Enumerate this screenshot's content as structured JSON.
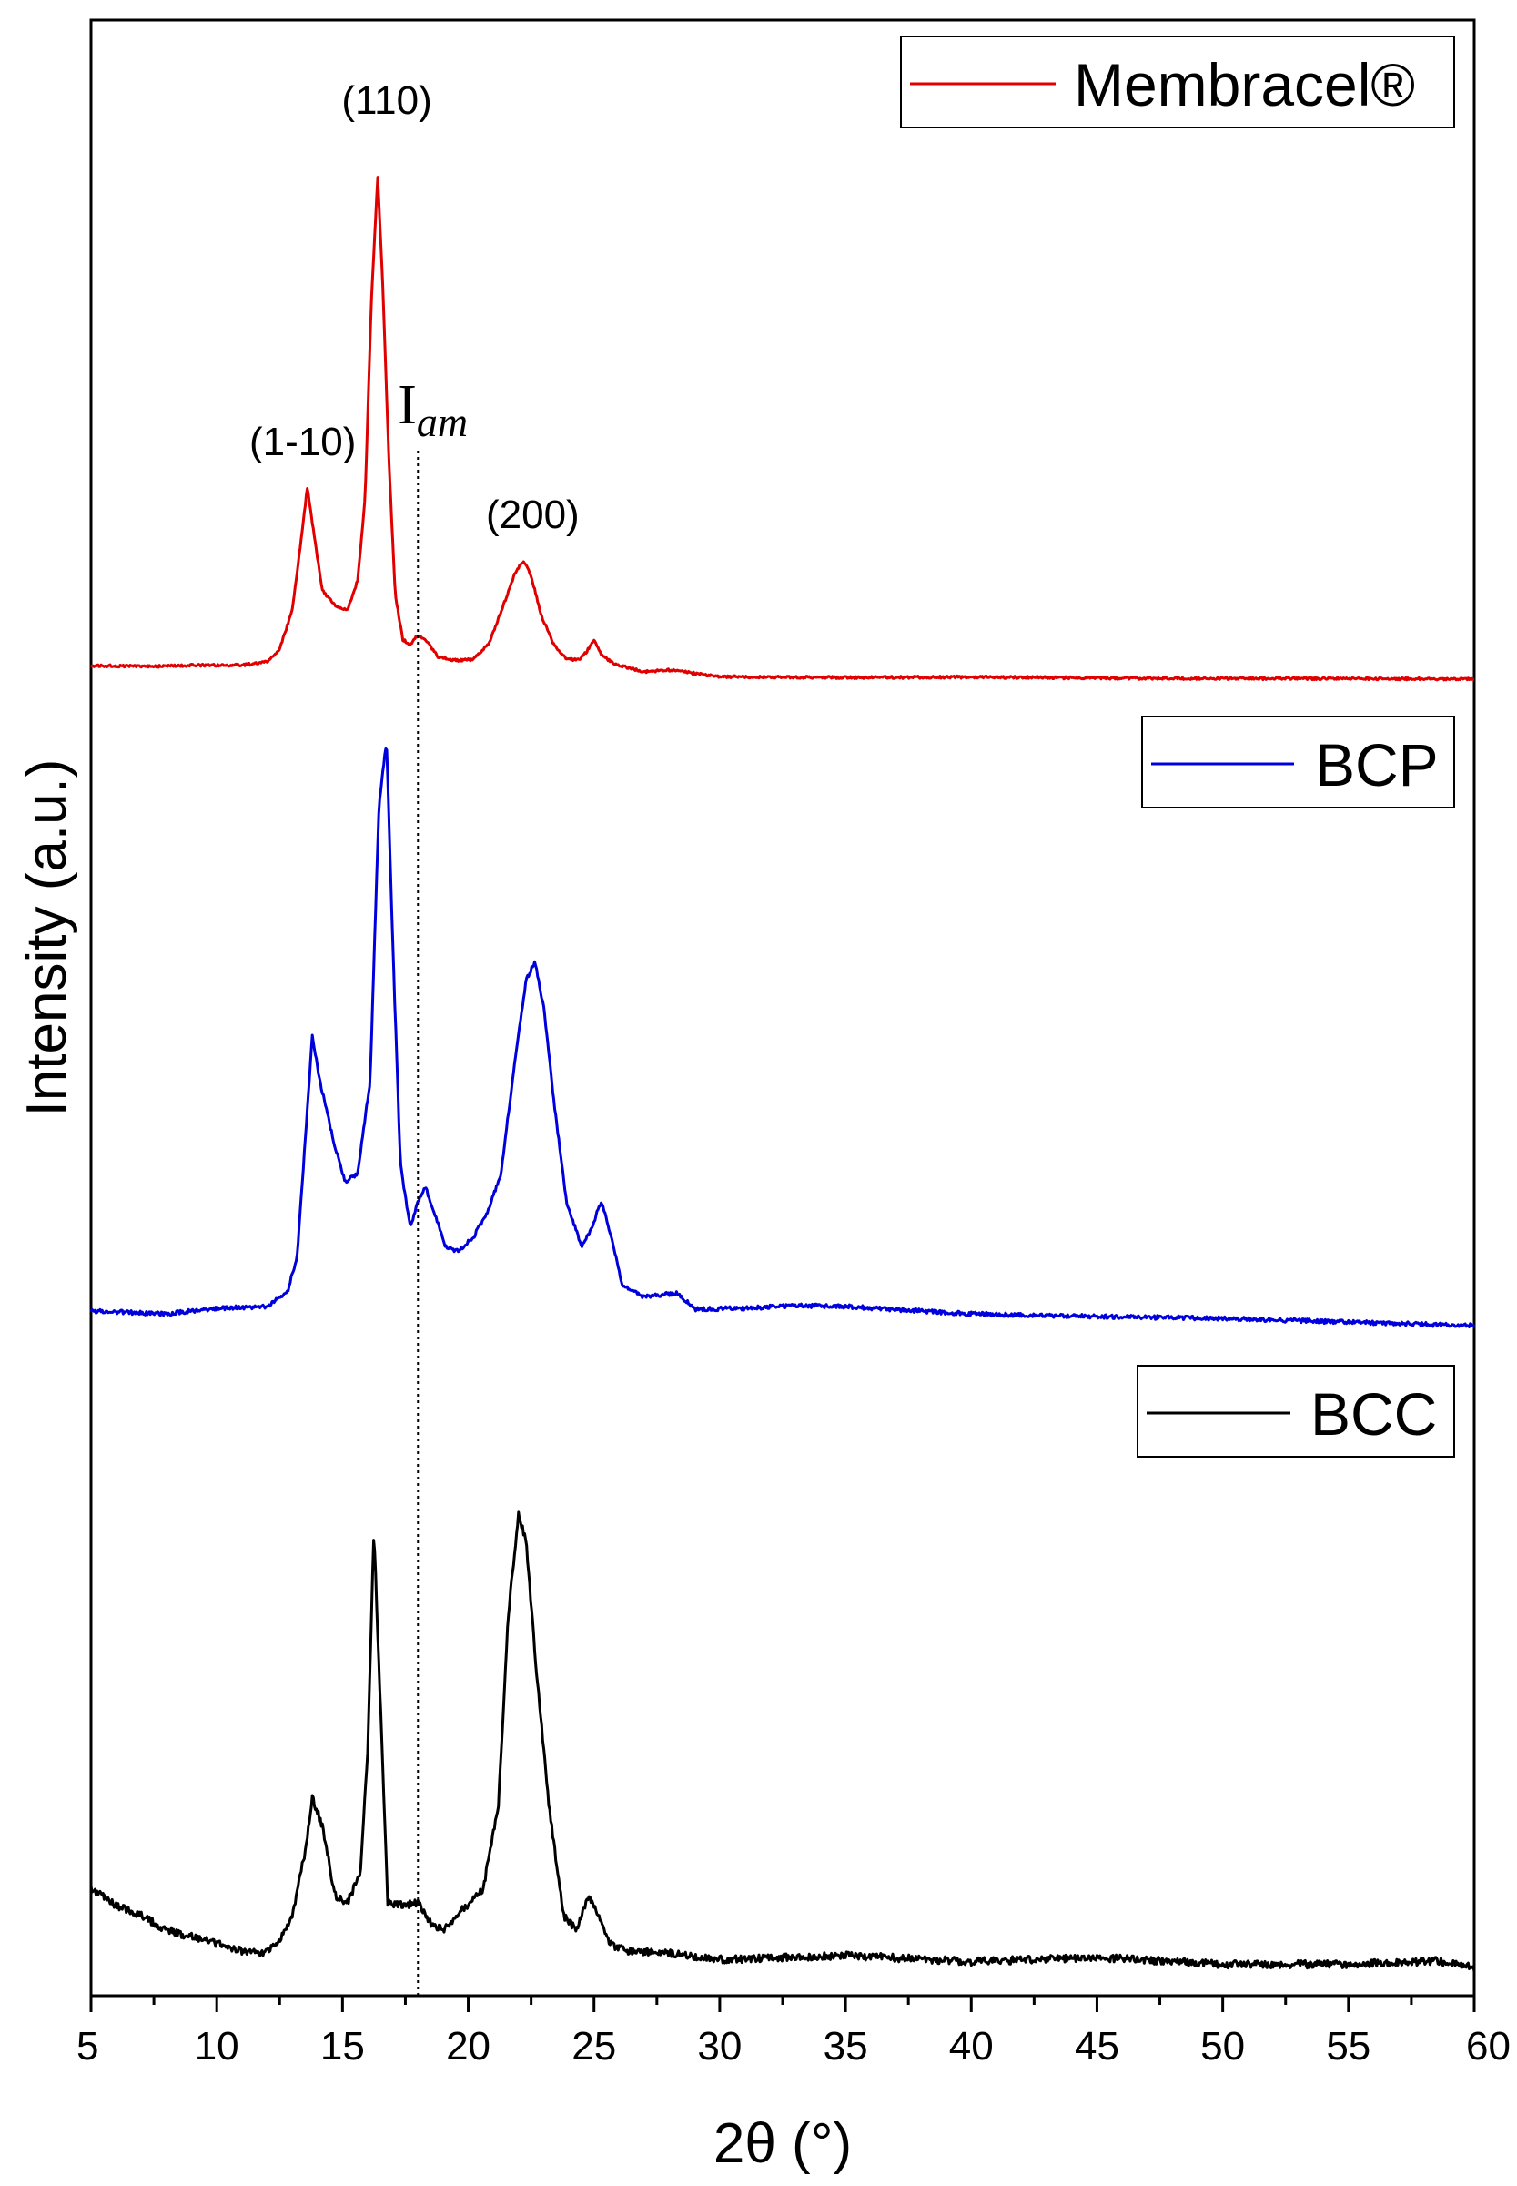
{
  "chart_data": {
    "type": "line",
    "xlabel": "2θ (°)",
    "ylabel": "Intensity (a.u.)",
    "xlim": [
      5,
      60
    ],
    "x_ticks": [
      "5",
      "10",
      "15",
      "20",
      "25",
      "30",
      "35",
      "40",
      "45",
      "50",
      "55",
      "60"
    ],
    "y_ticks": [],
    "legend_entries": [
      "Membracel®",
      "BCP",
      "BCC"
    ],
    "series": [
      {
        "name": "Membracel®",
        "color": "#e00000",
        "points": [
          [
            5,
            0.7
          ],
          [
            8,
            0.6
          ],
          [
            9,
            0.8
          ],
          [
            11,
            0.8
          ],
          [
            12,
            1.5
          ],
          [
            12.5,
            4
          ],
          [
            13,
            12
          ],
          [
            13.3,
            24
          ],
          [
            13.6,
            37
          ],
          [
            13.85,
            28
          ],
          [
            14.2,
            16
          ],
          [
            14.7,
            13
          ],
          [
            15.2,
            12
          ],
          [
            15.6,
            18
          ],
          [
            15.9,
            35
          ],
          [
            16.15,
            75
          ],
          [
            16.4,
            100
          ],
          [
            16.6,
            78
          ],
          [
            16.85,
            42
          ],
          [
            17.1,
            15
          ],
          [
            17.4,
            6
          ],
          [
            17.7,
            5
          ],
          [
            18.0,
            7
          ],
          [
            18.3,
            6
          ],
          [
            18.8,
            2.5
          ],
          [
            19.5,
            1.8
          ],
          [
            20.2,
            2
          ],
          [
            20.8,
            5
          ],
          [
            21.4,
            13
          ],
          [
            21.9,
            20
          ],
          [
            22.2,
            22
          ],
          [
            22.5,
            19
          ],
          [
            22.9,
            11
          ],
          [
            23.4,
            5
          ],
          [
            23.9,
            2
          ],
          [
            24.4,
            2
          ],
          [
            24.7,
            3.5
          ],
          [
            25.0,
            6
          ],
          [
            25.3,
            3
          ],
          [
            25.8,
            1
          ],
          [
            27,
            -0.5
          ],
          [
            28,
            -0.2
          ],
          [
            30,
            -1.5
          ],
          [
            35,
            -1.7
          ],
          [
            40,
            -1.6
          ],
          [
            45,
            -1.8
          ],
          [
            50,
            -1.9
          ],
          [
            55,
            -1.9
          ],
          [
            60,
            -2
          ]
        ]
      },
      {
        "name": "BCP",
        "color": "#0000dd",
        "points": [
          [
            5,
            0
          ],
          [
            8,
            -0.3
          ],
          [
            10,
            0.3
          ],
          [
            12,
            0.5
          ],
          [
            12.8,
            2
          ],
          [
            13.2,
            6
          ],
          [
            13.5,
            18
          ],
          [
            13.8,
            30
          ],
          [
            14.1,
            25
          ],
          [
            14.6,
            19
          ],
          [
            15.1,
            14
          ],
          [
            15.6,
            15
          ],
          [
            16.1,
            25
          ],
          [
            16.45,
            55
          ],
          [
            16.75,
            62
          ],
          [
            17.0,
            40
          ],
          [
            17.3,
            16
          ],
          [
            17.7,
            9
          ],
          [
            18.0,
            12
          ],
          [
            18.3,
            13.5
          ],
          [
            18.6,
            11
          ],
          [
            19.1,
            7
          ],
          [
            19.6,
            6.5
          ],
          [
            20.2,
            8
          ],
          [
            20.8,
            11
          ],
          [
            21.3,
            15
          ],
          [
            21.8,
            26
          ],
          [
            22.3,
            36
          ],
          [
            22.65,
            38
          ],
          [
            23.0,
            33
          ],
          [
            23.4,
            23
          ],
          [
            23.9,
            12
          ],
          [
            24.5,
            7
          ],
          [
            24.9,
            9
          ],
          [
            25.3,
            12
          ],
          [
            25.7,
            8
          ],
          [
            26.1,
            3
          ],
          [
            27,
            1.5
          ],
          [
            28.3,
            2
          ],
          [
            29,
            0.2
          ],
          [
            31,
            0.3
          ],
          [
            33,
            0.6
          ],
          [
            35,
            0.5
          ],
          [
            40,
            -0.3
          ],
          [
            45,
            -0.6
          ],
          [
            50,
            -0.8
          ],
          [
            55,
            -1.2
          ],
          [
            60,
            -1.6
          ]
        ]
      },
      {
        "name": "BCC",
        "color": "#000000",
        "points": [
          [
            5,
            10
          ],
          [
            6,
            7.5
          ],
          [
            7,
            6
          ],
          [
            8,
            4
          ],
          [
            9,
            3
          ],
          [
            10,
            2
          ],
          [
            11,
            1
          ],
          [
            11.7,
            0.5
          ],
          [
            12.4,
            2
          ],
          [
            13.0,
            6
          ],
          [
            13.5,
            15
          ],
          [
            13.8,
            23
          ],
          [
            14.2,
            19
          ],
          [
            14.7,
            9
          ],
          [
            15.2,
            8
          ],
          [
            15.7,
            12
          ],
          [
            16.0,
            30
          ],
          [
            16.25,
            62
          ],
          [
            16.45,
            42
          ],
          [
            16.8,
            8
          ],
          [
            17.4,
            7.5
          ],
          [
            18.0,
            8
          ],
          [
            18.5,
            5
          ],
          [
            19.0,
            4
          ],
          [
            19.8,
            7
          ],
          [
            20.6,
            10
          ],
          [
            21.2,
            22
          ],
          [
            21.6,
            50
          ],
          [
            22.0,
            64
          ],
          [
            22.3,
            60
          ],
          [
            22.7,
            42
          ],
          [
            23.2,
            22
          ],
          [
            23.8,
            6
          ],
          [
            24.3,
            4
          ],
          [
            24.8,
            9
          ],
          [
            25.2,
            6
          ],
          [
            25.6,
            2
          ],
          [
            26.2,
            1
          ],
          [
            28,
            0.7
          ],
          [
            30,
            -0.3
          ],
          [
            35,
            0.3
          ],
          [
            40,
            -0.6
          ],
          [
            45,
            0
          ],
          [
            50,
            -1
          ],
          [
            55,
            -1
          ],
          [
            58.5,
            -0.5
          ],
          [
            60,
            -1.5
          ]
        ]
      }
    ],
    "annotations": [
      {
        "text": "(110)",
        "x": 16.4
      },
      {
        "text": "(1-10)",
        "x": 13.6
      },
      {
        "text": "(200)",
        "x": 22.2
      },
      {
        "text": "I",
        "subscript": "am",
        "x": 18.0
      }
    ],
    "reference_line_x": 18.0,
    "grid": false,
    "legend_placement": "top-right"
  }
}
